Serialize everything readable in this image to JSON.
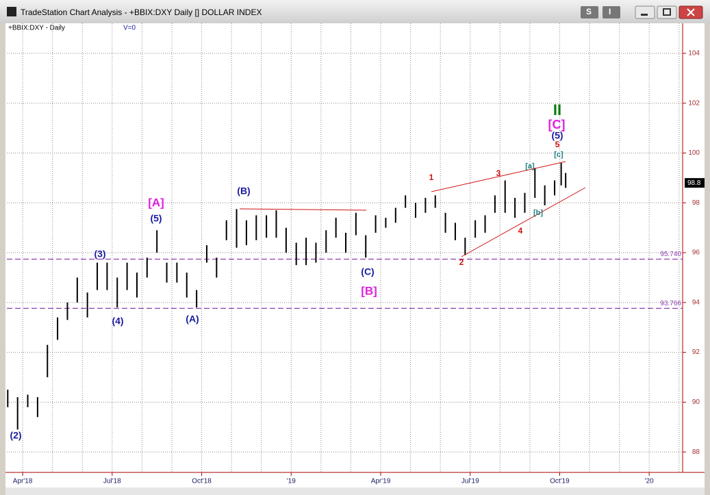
{
  "window": {
    "title": "TradeStation Chart Analysis - +BBIX:DXY Daily [] DOLLAR INDEX",
    "buttons": [
      "S",
      "I"
    ]
  },
  "chart_data": {
    "type": "hlbar",
    "symbol": "+BBIX:DXY - Daily",
    "volume_label": "V=0",
    "color": "#000000",
    "grid": true,
    "xlim": [
      2.47,
      25.12
    ],
    "xticks": [
      {
        "value": 3,
        "label": "Apr'18"
      },
      {
        "value": 6,
        "label": "Jul'18"
      },
      {
        "value": 9,
        "label": "Oct'18"
      },
      {
        "value": 12,
        "label": "'19"
      },
      {
        "value": 15,
        "label": "Apr'19"
      },
      {
        "value": 18,
        "label": "Jul'19"
      },
      {
        "value": 21,
        "label": "Oct'19"
      },
      {
        "value": 24,
        "label": "'20"
      }
    ],
    "xminor": [
      4,
      5,
      7,
      8,
      10,
      11,
      13,
      14,
      16,
      17,
      19,
      20,
      22,
      23,
      25
    ],
    "ylim": [
      87.18,
      104.85
    ],
    "yticks": [
      88,
      90,
      92,
      94,
      96,
      98,
      100,
      102,
      104
    ],
    "x": [
      2.5,
      2.83,
      3.17,
      3.5,
      3.83,
      4.17,
      4.5,
      4.83,
      5.17,
      5.5,
      5.83,
      6.17,
      6.5,
      6.83,
      7.17,
      7.5,
      7.83,
      8.17,
      8.5,
      8.83,
      9.17,
      9.5,
      9.83,
      10.17,
      10.5,
      10.83,
      11.17,
      11.5,
      11.83,
      12.17,
      12.5,
      12.83,
      13.17,
      13.5,
      13.83,
      14.17,
      14.5,
      14.83,
      15.17,
      15.5,
      15.83,
      16.17,
      16.5,
      16.83,
      17.17,
      17.5,
      17.83,
      18.17,
      18.5,
      18.83,
      19.17,
      19.5,
      19.83,
      20.17,
      20.5,
      20.83,
      21.05,
      21.2
    ],
    "high": [
      90.5,
      90.2,
      90.3,
      90.2,
      92.3,
      93.4,
      94,
      95,
      94.4,
      95.6,
      95.6,
      95,
      95.6,
      95.2,
      95.8,
      96.9,
      95.6,
      95.6,
      95.2,
      94.5,
      96.3,
      95.8,
      97.3,
      97.75,
      97.3,
      97.5,
      97.5,
      97.7,
      97,
      96.4,
      96.6,
      96.4,
      96.9,
      97.4,
      96.8,
      97.6,
      96.7,
      97.5,
      97.4,
      97.8,
      98.3,
      98,
      98.2,
      98.3,
      97.6,
      97.2,
      96.6,
      97.3,
      97.5,
      98.3,
      98.9,
      98.2,
      98.4,
      99.4,
      98.7,
      98.9,
      99.6,
      99.2
    ],
    "low": [
      89.8,
      88.9,
      89.8,
      89.4,
      91,
      92.5,
      93.3,
      94,
      93.4,
      94.5,
      94.5,
      93.8,
      94.5,
      94.2,
      95,
      96,
      94.8,
      94.8,
      94.2,
      93.8,
      95.6,
      95,
      96.5,
      96.2,
      96.3,
      96.5,
      96.6,
      96.6,
      96,
      95.5,
      95.5,
      95.6,
      96,
      96.6,
      96,
      96.7,
      95.8,
      96.8,
      97,
      97.2,
      97.8,
      97.4,
      97.6,
      97.8,
      96.8,
      96.5,
      95.9,
      96.6,
      96.8,
      97.6,
      97.6,
      97.4,
      97.6,
      98.2,
      97.9,
      98.3,
      98.7,
      98.6
    ],
    "levels": [
      {
        "value": 95.74,
        "label": "95.740"
      },
      {
        "value": 93.766,
        "label": "93.766"
      }
    ],
    "last_price": {
      "value": 98.8,
      "label": "98.8"
    },
    "annotations": [
      {
        "text": "(2)",
        "color": "#1a1aa0"
      },
      {
        "text": "[A]",
        "color": "#e020e0"
      },
      {
        "text": "(5)",
        "color": "#1a1aa0"
      },
      {
        "text": "(3)",
        "color": "#1a1aa0"
      },
      {
        "text": "(4)",
        "color": "#1a1aa0"
      },
      {
        "text": "(A)",
        "color": "#1a1aa0"
      },
      {
        "text": "(B)",
        "color": "#1a1aa0"
      },
      {
        "text": "(C)",
        "color": "#1a1aa0"
      },
      {
        "text": "[B]",
        "color": "#e020e0"
      },
      {
        "text": "1",
        "color": "#d01010"
      },
      {
        "text": "2",
        "color": "#d01010"
      },
      {
        "text": "3",
        "color": "#d01010"
      },
      {
        "text": "4",
        "color": "#d01010"
      },
      {
        "text": "[a]",
        "color": "#208080"
      },
      {
        "text": "[b]",
        "color": "#208080"
      },
      {
        "text": "[c]",
        "color": "#208080"
      },
      {
        "text": "5",
        "color": "#d01010"
      },
      {
        "text": "(5)",
        "color": "#1a1aa0"
      },
      {
        "text": "[C]",
        "color": "#e020e0"
      },
      {
        "text": "II",
        "color": "#0a7a0a"
      }
    ]
  }
}
